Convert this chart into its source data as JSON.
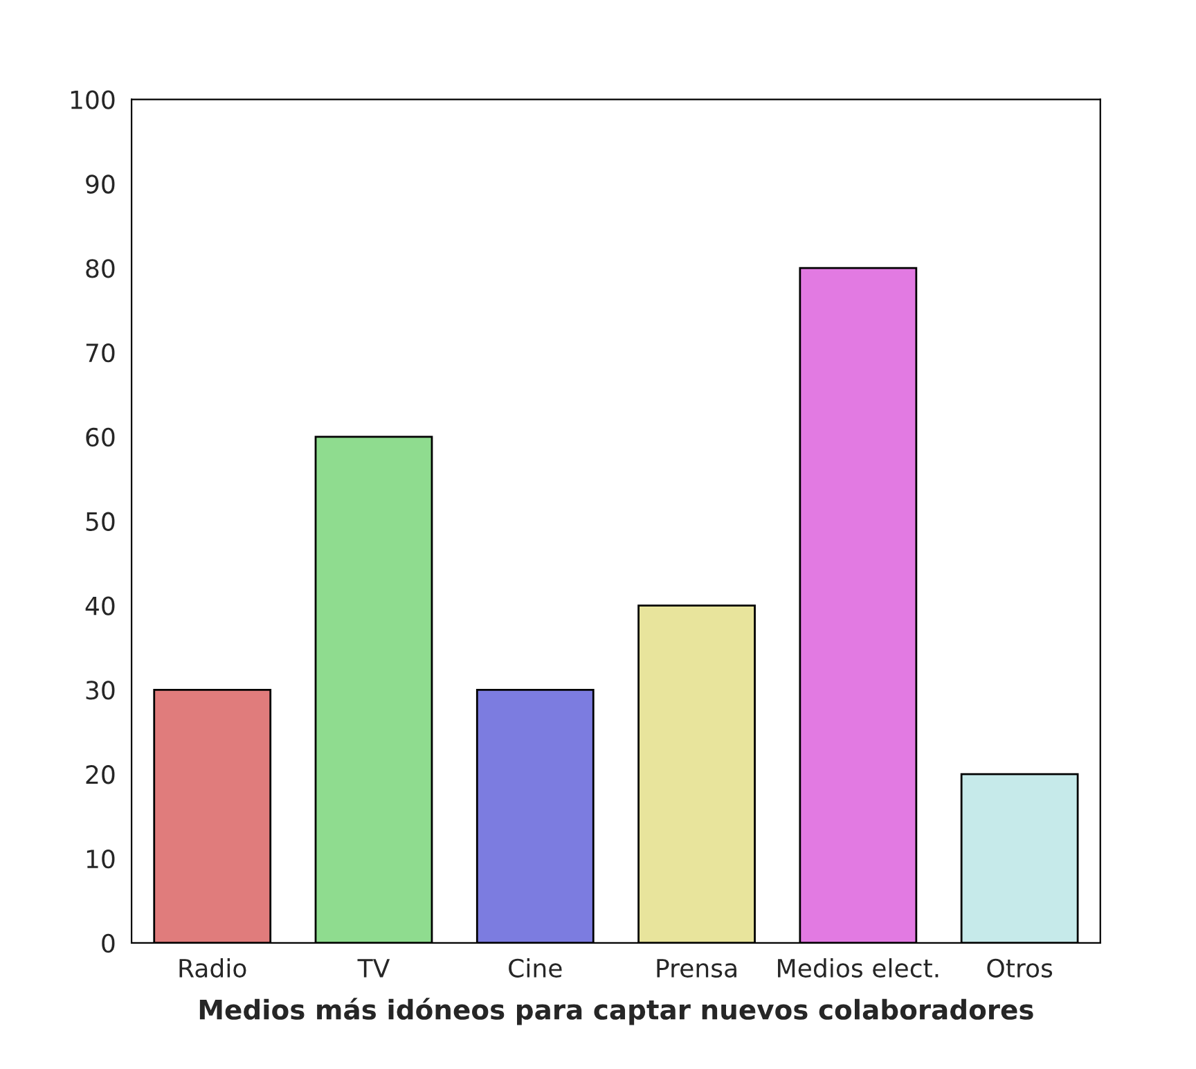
{
  "chart_data": {
    "type": "bar",
    "xlabel": "Medios más idóneos para captar nuevos colaboradores",
    "categories": [
      "Radio",
      "TV",
      "Cine",
      "Prensa",
      "Medios elect.",
      "Otros"
    ],
    "values": [
      30,
      60,
      30,
      40,
      80,
      20
    ],
    "colors": [
      "#e07c7c",
      "#8fdc8f",
      "#7c7ce0",
      "#e8e49c",
      "#e27ae2",
      "#c6eaea"
    ],
    "ylim": [
      0,
      100
    ],
    "yticks": [
      0,
      10,
      20,
      30,
      40,
      50,
      60,
      70,
      80,
      90,
      100
    ],
    "grid": false,
    "legend": false
  }
}
